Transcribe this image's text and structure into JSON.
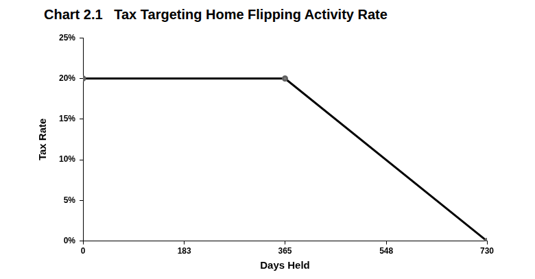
{
  "chart_data": {
    "type": "line",
    "title": "Chart 2.1   Tax Targeting Home Flipping Activity Rate",
    "x_label": "Days Held",
    "y_label": "Tax Rate",
    "x": [
      0,
      365,
      730
    ],
    "values": [
      20,
      20,
      0
    ],
    "color": "#000000",
    "marker": "circle",
    "xlim": [
      0,
      730
    ],
    "xticks": [
      0,
      183,
      365,
      548,
      730
    ],
    "ylim": [
      0,
      25
    ],
    "yticks": [
      {
        "value": 0,
        "label": "0%"
      },
      {
        "value": 5,
        "label": "5%"
      },
      {
        "value": 10,
        "label": "10%"
      },
      {
        "value": 15,
        "label": "15%"
      },
      {
        "value": 20,
        "label": "20%"
      },
      {
        "value": 25,
        "label": "25%"
      }
    ],
    "grid": false,
    "data_labels": false
  }
}
